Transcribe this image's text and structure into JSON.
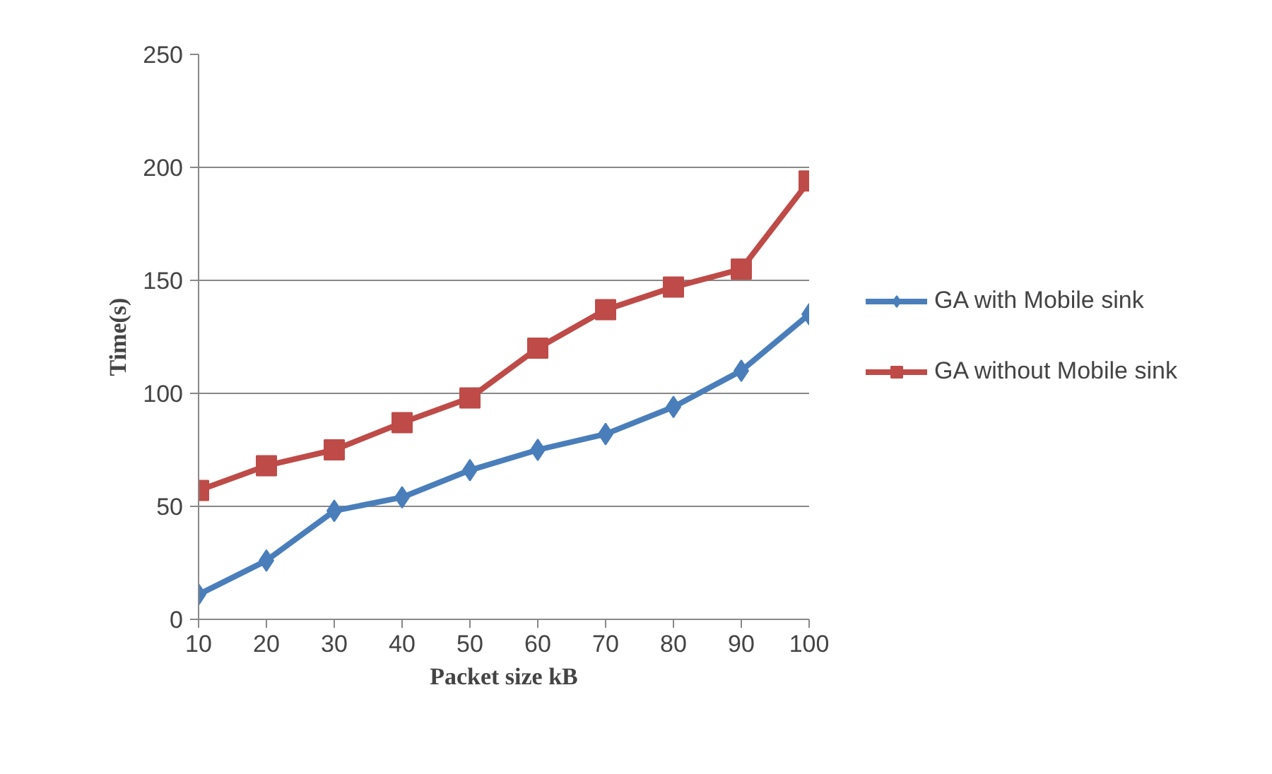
{
  "chart_data": {
    "type": "line",
    "xlabel": "Packet size kB",
    "ylabel": "Time(s)",
    "x": [
      10,
      20,
      30,
      40,
      50,
      60,
      70,
      80,
      90,
      100
    ],
    "series": [
      {
        "name": "GA with Mobile sink",
        "color": "#4a7ebb",
        "marker": "diamond",
        "values": [
          11,
          26,
          48,
          54,
          66,
          75,
          82,
          94,
          110,
          135
        ]
      },
      {
        "name": "GA without Mobile sink",
        "color": "#be4b48",
        "marker": "square",
        "values": [
          57,
          68,
          75,
          87,
          98,
          120,
          137,
          147,
          155,
          194
        ]
      }
    ],
    "xlim": [
      10,
      100
    ],
    "xticks": [
      10,
      20,
      30,
      40,
      50,
      60,
      70,
      80,
      90,
      100
    ],
    "ylim": [
      0,
      250
    ],
    "yticks": [
      0,
      50,
      100,
      150,
      200,
      250
    ],
    "grid": "y",
    "legend": "right",
    "line_style": "solid"
  }
}
